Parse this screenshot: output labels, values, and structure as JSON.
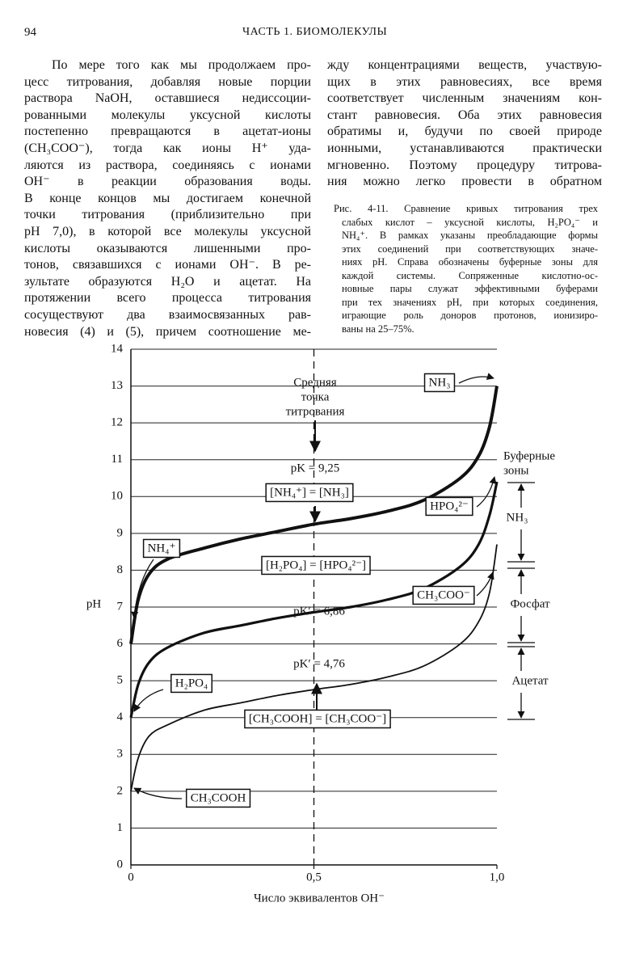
{
  "header": {
    "page_number": "94",
    "running_title": "ЧАСТЬ 1. БИОМОЛЕКУЛЫ"
  },
  "body": {
    "left_column": [
      "По мере того как мы продолжаем про-",
      "цесс титрования, добавляя новые порции",
      "раствора NaOH, оставшиеся недиссоции-",
      "рованными молекулы уксусной кислоты",
      "постепенно превращаются в ацетат-ионы",
      "(CH₃COO⁻), тогда как ионы H⁺ уда-",
      "ляются из раствора, соединяясь с ионами",
      "OH⁻ в реакции образования воды.",
      "В конце концов мы достигаем конечной",
      "точки титрования (приблизительно при",
      "pH 7,0), в которой все молекулы уксусной",
      "кислоты оказываются лишенными про-",
      "тонов, связавшихся с ионами OH⁻. В ре-",
      "зультате образуются H₂O и ацетат. На",
      "протяжении всего процесса титрования",
      "сосуществуют два взаимосвязанных рав-",
      "новесия (4) и (5), причем соотношение ме-"
    ],
    "right_column": [
      "жду концентрациями веществ, участвую-",
      "щих в этих равновесиях, все время",
      "соответствует численным значениям кон-",
      "стант равновесия. Оба этих равновесия",
      "обратимы и, будучи по своей природе",
      "ионными, устанавливаются практически",
      "мгновенно. Поэтому процедуру титрова-",
      "ния можно легко провести в обратном"
    ]
  },
  "caption": [
    "Рис. 4-11. Сравнение кривых титрования трех",
    "слабых кислот – уксусной кислоты, H₂PO₄⁻ и",
    "NH₄⁺. В рамках указаны преобладающие формы",
    "этих соединений при соответствующих значе-",
    "ниях pH. Справа обозначены буферные зоны для",
    "каждой системы. Сопряженные кислотно-ос-",
    "новные пары служат эффективными буферами",
    "при тех значениях pH, при которых соединения,",
    "играющие роль доноров протонов, ионизиро-",
    "ваны на 25–75%."
  ],
  "chart_data": {
    "type": "line",
    "x_label": "Число эквивалентов OH⁻",
    "y_label": "pH",
    "xlim": [
      0,
      1
    ],
    "ylim": [
      0,
      14
    ],
    "xticks": [
      0,
      {
        "value": 0.5,
        "label": "0,5"
      },
      {
        "value": 1,
        "label": "1,0"
      }
    ],
    "yticks": [
      0,
      1,
      2,
      3,
      4,
      5,
      6,
      7,
      8,
      9,
      10,
      11,
      12,
      13,
      14
    ],
    "grid": true,
    "x": [
      0,
      0.02,
      0.05,
      0.1,
      0.2,
      0.3,
      0.4,
      0.5,
      0.6,
      0.7,
      0.8,
      0.9,
      0.95,
      0.98,
      1
    ],
    "series": [
      {
        "color": "#111111",
        "values": [
          2.0,
          2.9,
          3.5,
          3.8,
          4.2,
          4.4,
          4.6,
          4.76,
          4.9,
          5.1,
          5.4,
          6.0,
          6.6,
          7.4,
          8.7
        ]
      },
      {
        "color": "#111111",
        "values": [
          4.0,
          4.9,
          5.5,
          5.9,
          6.3,
          6.5,
          6.7,
          6.86,
          7.0,
          7.2,
          7.5,
          8.1,
          8.7,
          9.5,
          10.4
        ]
      },
      {
        "color": "#111111",
        "values": [
          6.0,
          7.2,
          7.9,
          8.3,
          8.6,
          8.85,
          9.05,
          9.25,
          9.4,
          9.6,
          9.9,
          10.5,
          11.1,
          11.9,
          13.0
        ]
      }
    ],
    "annotations": [
      "NH₃",
      "Средняя",
      "точка",
      "титрования",
      "pK = 9,25",
      "[NH₄⁺] = [NH₃]",
      "HPO₄²⁻",
      "NH₄⁺",
      "[H₂PO₄] = [HPO₄²⁻]",
      "CH₃COO⁻",
      "pK′ = 6,86",
      "pK′ = 4,76",
      "H₂PO₄",
      "[CH₃COOH] = [CH₃COO⁻]",
      "CH₃COOH",
      "Буферные",
      "зоны",
      "NH₃",
      "Фосфат",
      "Ацетат"
    ]
  }
}
